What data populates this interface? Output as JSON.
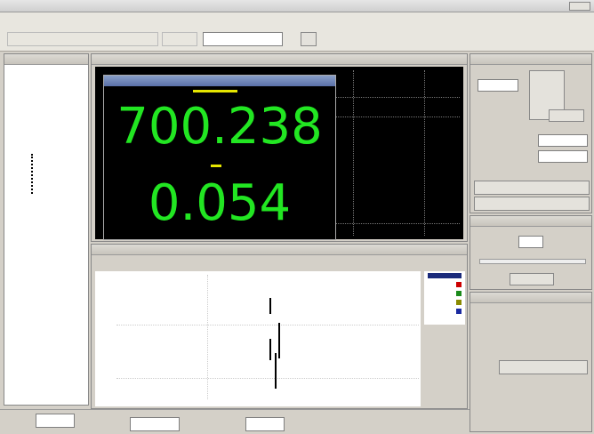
{
  "reading": {
    "primary": "700.238",
    "secondary": "0.054"
  }
}
